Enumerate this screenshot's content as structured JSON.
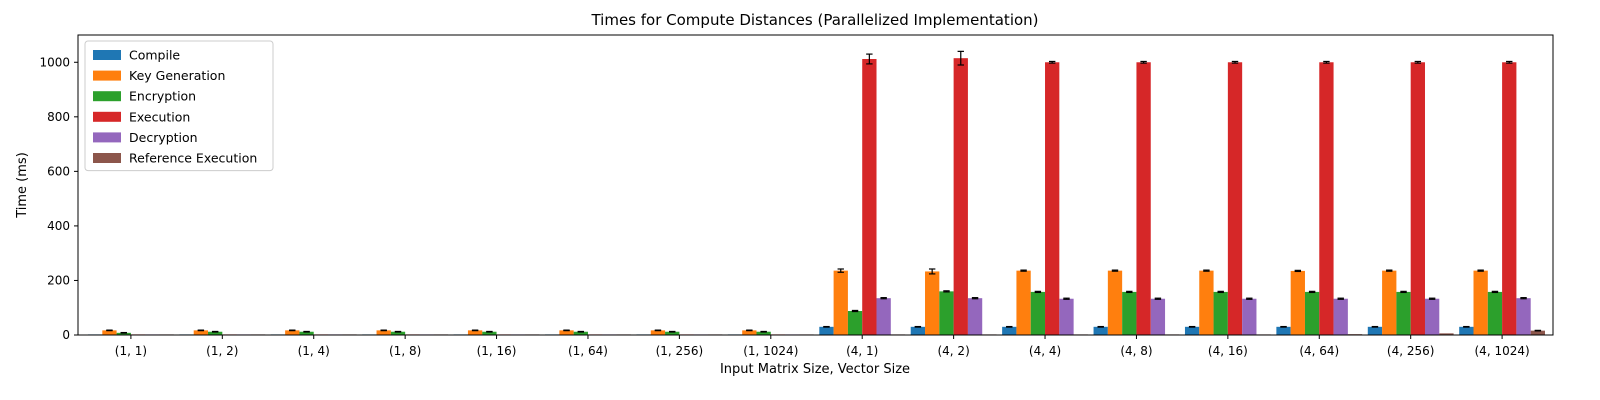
{
  "chart_data": {
    "type": "bar",
    "title": "Times for Compute Distances (Parallelized Implementation)",
    "xlabel": "Input Matrix Size, Vector Size",
    "ylabel": "Time (ms)",
    "ylim": [
      0,
      1100
    ],
    "yticks": [
      0,
      200,
      400,
      600,
      800,
      1000
    ],
    "grid": false,
    "legend_position": "upper-left",
    "categories": [
      "(1, 1)",
      "(1, 2)",
      "(1, 4)",
      "(1, 8)",
      "(1, 16)",
      "(1, 64)",
      "(1, 256)",
      "(1, 1024)",
      "(4, 1)",
      "(4, 2)",
      "(4, 4)",
      "(4, 8)",
      "(4, 16)",
      "(4, 64)",
      "(4, 256)",
      "(4, 1024)"
    ],
    "series": [
      {
        "name": "Compile",
        "color": "#1f77b4",
        "values": [
          1,
          1,
          1,
          1,
          1,
          1,
          1,
          1,
          30,
          30,
          30,
          30,
          30,
          30,
          30,
          30
        ],
        "errors": [
          0,
          0,
          0,
          0,
          0,
          0,
          0,
          0,
          1,
          1,
          1,
          1,
          1,
          1,
          1,
          1
        ]
      },
      {
        "name": "Key Generation",
        "color": "#ff7f0e",
        "values": [
          17,
          17,
          17,
          17,
          17,
          17,
          17,
          17,
          236,
          233,
          236,
          236,
          236,
          235,
          236,
          236
        ],
        "errors": [
          1,
          1,
          1,
          1,
          1,
          1,
          1,
          1,
          6,
          9,
          2,
          2,
          2,
          2,
          2,
          2
        ]
      },
      {
        "name": "Encryption",
        "color": "#2ca02c",
        "values": [
          8,
          12,
          12,
          12,
          12,
          12,
          12,
          12,
          88,
          160,
          158,
          158,
          158,
          158,
          158,
          158
        ],
        "errors": [
          1,
          1,
          1,
          1,
          1,
          1,
          1,
          1,
          2,
          2,
          2,
          2,
          2,
          2,
          2,
          2
        ]
      },
      {
        "name": "Execution",
        "color": "#d62728",
        "values": [
          1,
          1,
          1,
          1,
          1,
          1,
          1,
          1,
          1012,
          1015,
          1000,
          1000,
          1000,
          1000,
          1000,
          1000
        ],
        "errors": [
          0,
          0,
          0,
          0,
          0,
          0,
          0,
          0,
          18,
          25,
          3,
          3,
          3,
          3,
          3,
          3
        ]
      },
      {
        "name": "Decryption",
        "color": "#9467bd",
        "values": [
          2,
          2,
          2,
          2,
          2,
          2,
          2,
          2,
          135,
          135,
          133,
          133,
          133,
          133,
          133,
          135
        ],
        "errors": [
          0,
          0,
          0,
          0,
          0,
          0,
          0,
          0,
          2,
          2,
          2,
          2,
          2,
          2,
          2,
          2
        ]
      },
      {
        "name": "Reference Execution",
        "color": "#8c564b",
        "values": [
          0.5,
          0.5,
          0.5,
          0.5,
          0.5,
          0.5,
          0.5,
          1,
          1,
          1,
          1,
          1,
          2,
          3,
          6,
          16
        ],
        "errors": [
          0,
          0,
          0,
          0,
          0,
          0,
          0,
          0,
          0,
          0,
          0,
          0,
          0,
          0,
          0,
          1
        ]
      }
    ]
  }
}
